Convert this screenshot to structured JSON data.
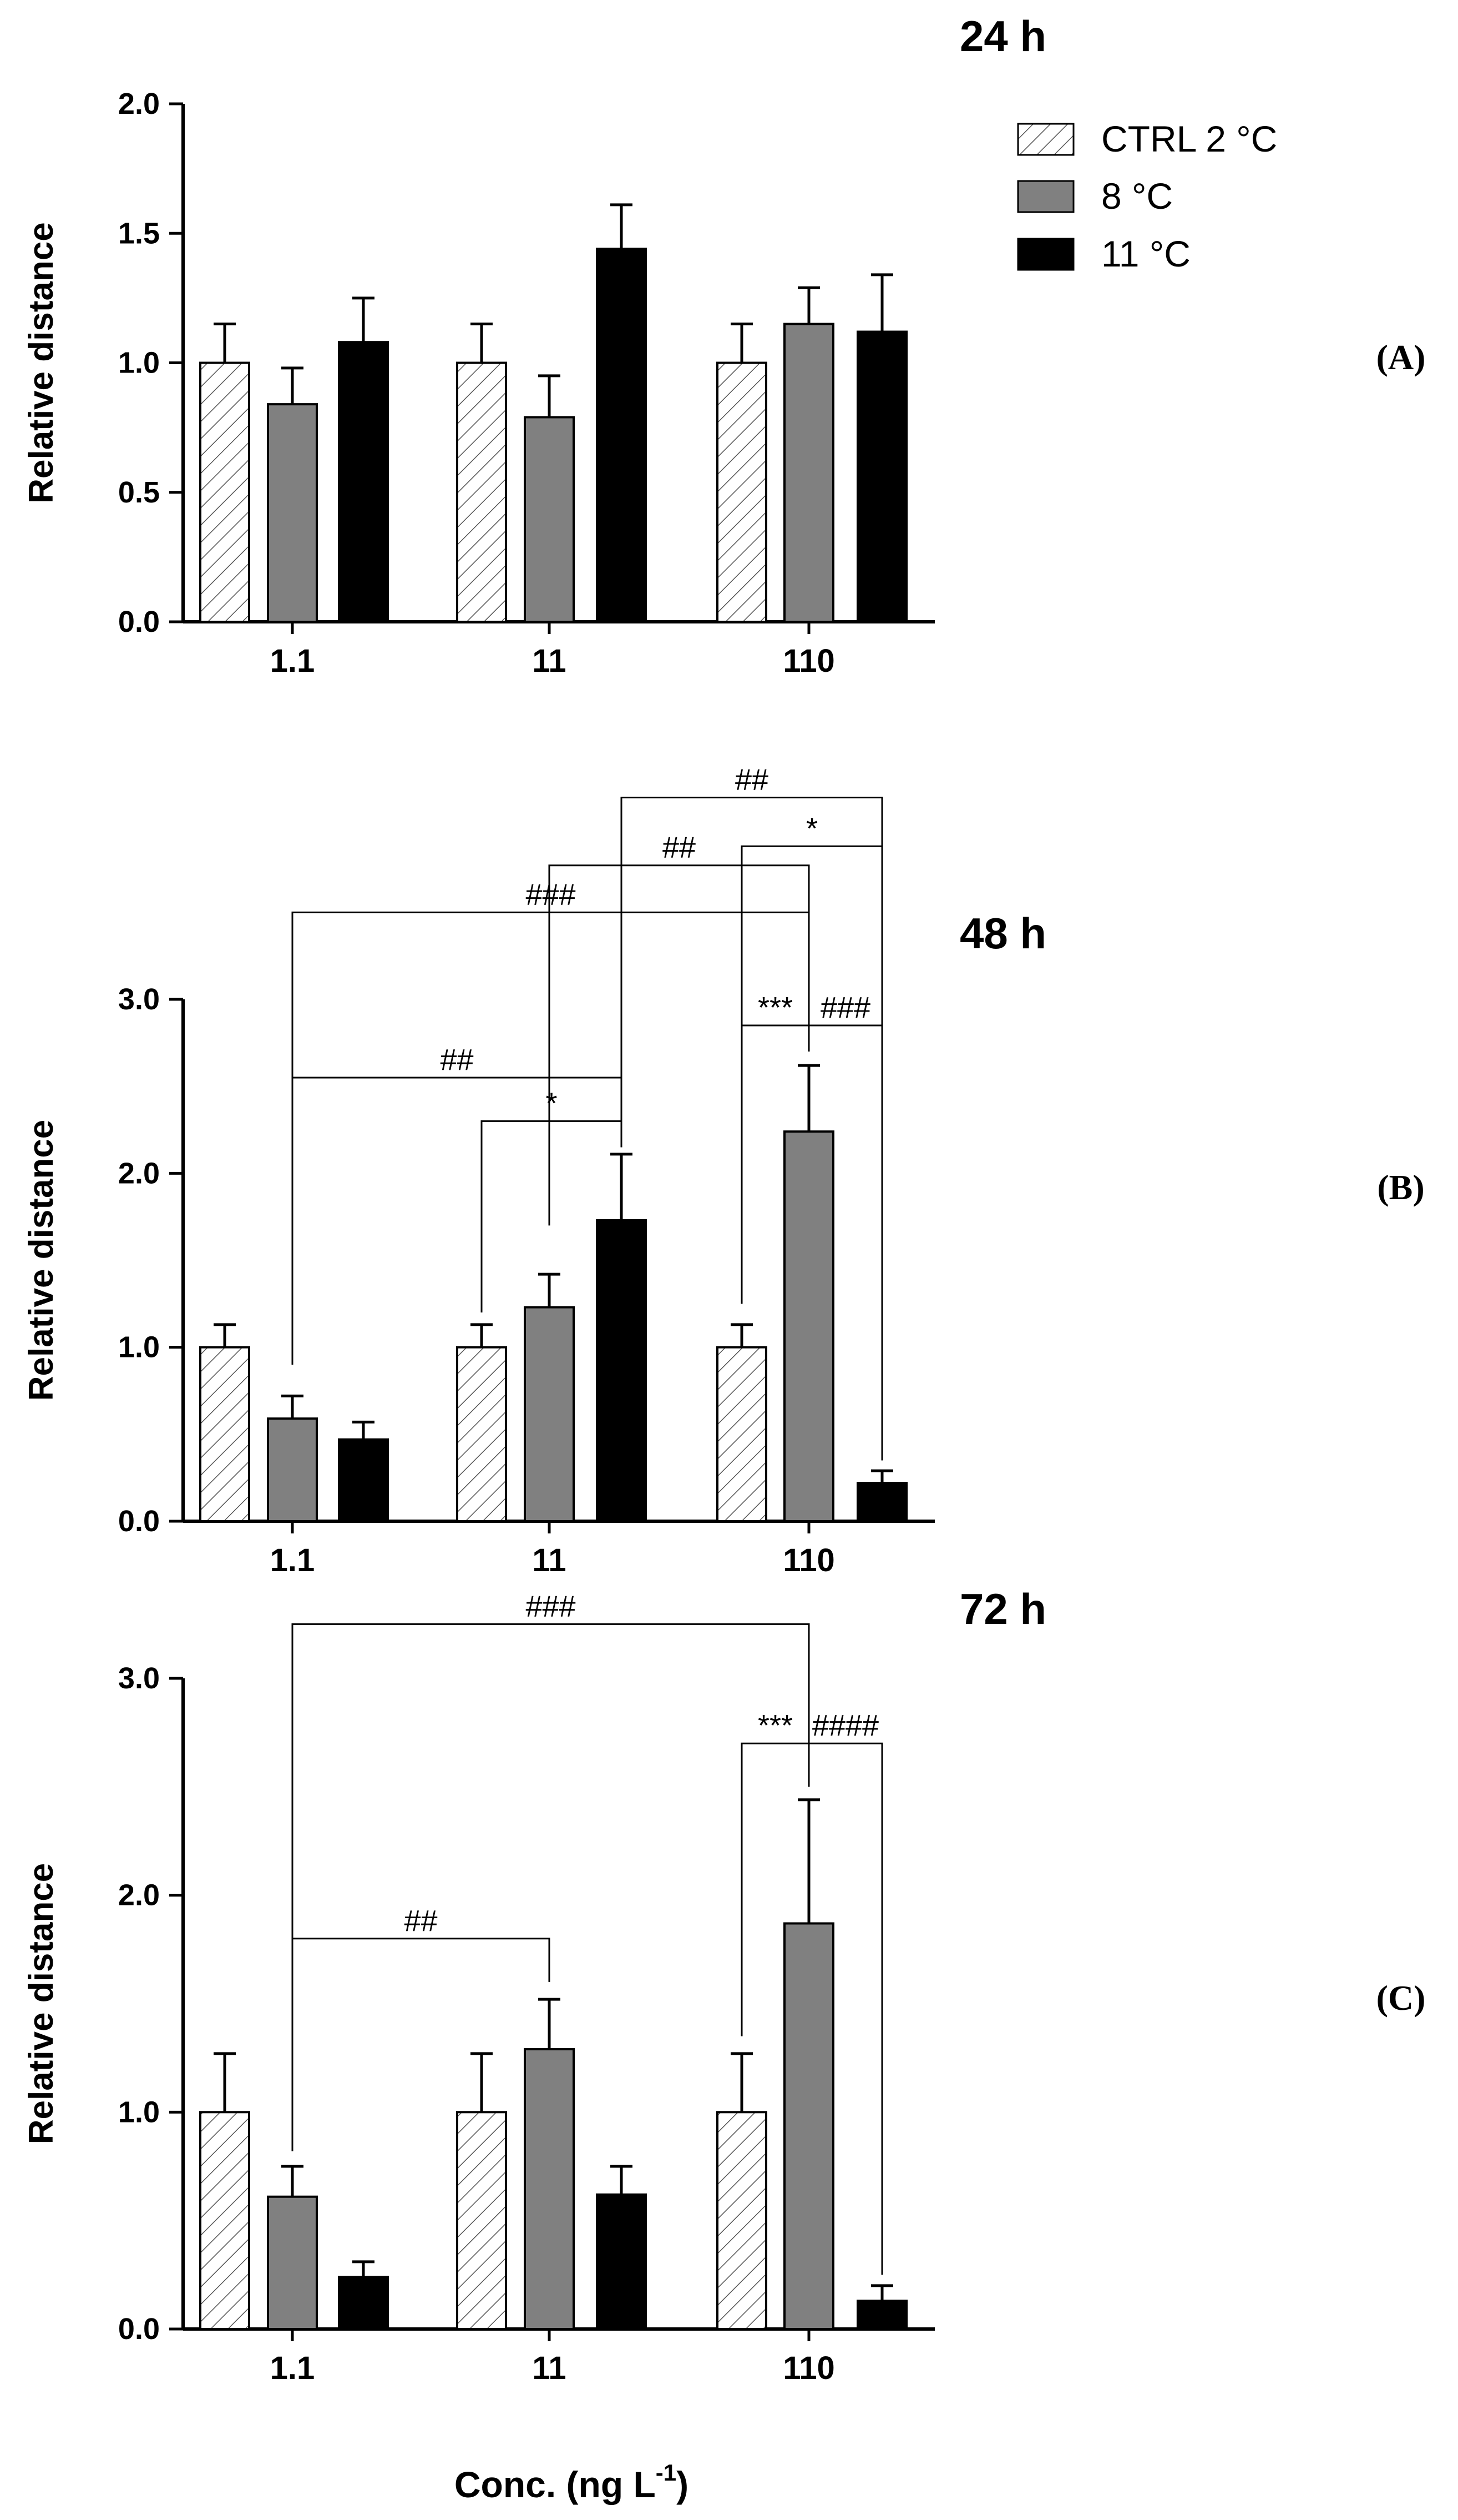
{
  "colors": {
    "ctrl": "#ffffff",
    "c8": "#808080",
    "c11": "#000000",
    "ink": "#000000"
  },
  "legend": {
    "items": [
      {
        "label": "CTRL 2 °C",
        "key": "ctrl"
      },
      {
        "label": "8 °C",
        "key": "c8"
      },
      {
        "label": "11 °C",
        "key": "c11"
      }
    ]
  },
  "xaxis": {
    "title": "Conc. (ng L",
    "title_sup": "-1",
    "title_close": ")"
  },
  "chart_data": [
    {
      "type": "bar",
      "title": "24 h",
      "panel_label": "(A)",
      "ylabel": "Relative distance",
      "categories": [
        "1.1",
        "11",
        "110"
      ],
      "ylim": [
        0,
        2.0
      ],
      "yticks": [
        "0.0",
        "0.5",
        "1.0",
        "1.5",
        "2.0"
      ],
      "series": [
        {
          "name": "CTRL 2 °C",
          "values": [
            1.0,
            1.0,
            1.0
          ],
          "errors": [
            0.15,
            0.15,
            0.15
          ]
        },
        {
          "name": "8 °C",
          "values": [
            0.84,
            0.79,
            1.15
          ],
          "errors": [
            0.14,
            0.16,
            0.14
          ]
        },
        {
          "name": "11 °C",
          "values": [
            1.08,
            1.44,
            1.12
          ],
          "errors": [
            0.17,
            0.17,
            0.22
          ]
        }
      ],
      "annotations": []
    },
    {
      "type": "bar",
      "title": "48 h",
      "panel_label": "(B)",
      "ylabel": "Relative distance",
      "categories": [
        "1.1",
        "11",
        "110"
      ],
      "ylim": [
        0,
        3.0
      ],
      "yticks": [
        "0.0",
        "1.0",
        "2.0",
        "3.0"
      ],
      "series": [
        {
          "name": "CTRL 2 °C",
          "values": [
            1.0,
            1.0,
            1.0
          ],
          "errors": [
            0.13,
            0.13,
            0.13
          ]
        },
        {
          "name": "8 °C",
          "values": [
            0.59,
            1.23,
            2.24
          ],
          "errors": [
            0.13,
            0.19,
            0.38
          ]
        },
        {
          "name": "11 °C",
          "values": [
            0.47,
            1.73,
            0.22
          ],
          "errors": [
            0.1,
            0.38,
            0.07
          ]
        }
      ],
      "annotations": [
        {
          "from": [
            0,
            1
          ],
          "to": [
            1,
            2
          ],
          "label": "##",
          "from_y": 0.9,
          "to_y": 2.15,
          "top_y": 2.55
        },
        {
          "from": [
            1,
            0
          ],
          "to": [
            1,
            2
          ],
          "label": "*",
          "from_y": 1.2,
          "to_y": 2.15,
          "top_y": 2.3
        },
        {
          "from": [
            0,
            1
          ],
          "to": [
            2,
            1
          ],
          "label": "###",
          "from_y": 0.98,
          "to_y": 2.7,
          "top_y": 3.5
        },
        {
          "from": [
            1,
            1
          ],
          "to": [
            2,
            1
          ],
          "label": "##",
          "from_y": 1.7,
          "to_y": 2.7,
          "top_y": 3.77
        },
        {
          "from": [
            1,
            2
          ],
          "to": [
            2,
            2
          ],
          "label": "##",
          "from_y": 2.15,
          "to_y": 0.35,
          "top_y": 4.16
        },
        {
          "from": [
            2,
            0
          ],
          "to": [
            2,
            2
          ],
          "label": "*",
          "from_y": 1.25,
          "to_y": 0.35,
          "top_y": 3.88
        },
        {
          "from": [
            2,
            0
          ],
          "to": [
            2,
            1
          ],
          "label": "***",
          "from_y": 1.25,
          "to_y": 2.7,
          "top_y": 2.85
        },
        {
          "from": [
            2,
            1
          ],
          "to": [
            2,
            2
          ],
          "label": "###",
          "from_y": 2.7,
          "to_y": 0.35,
          "top_y": 2.85
        }
      ]
    },
    {
      "type": "bar",
      "title": "72 h",
      "panel_label": "(C)",
      "ylabel": "Relative distance",
      "categories": [
        "1.1",
        "11",
        "110"
      ],
      "ylim": [
        0,
        3.0
      ],
      "yticks": [
        "0.0",
        "1.0",
        "2.0",
        "3.0"
      ],
      "series": [
        {
          "name": "CTRL 2 °C",
          "values": [
            1.0,
            1.0,
            1.0
          ],
          "errors": [
            0.27,
            0.27,
            0.27
          ]
        },
        {
          "name": "8 °C",
          "values": [
            0.61,
            1.29,
            1.87
          ],
          "errors": [
            0.14,
            0.23,
            0.57
          ]
        },
        {
          "name": "11 °C",
          "values": [
            0.24,
            0.62,
            0.13
          ],
          "errors": [
            0.07,
            0.13,
            0.07
          ]
        }
      ],
      "annotations": [
        {
          "from": [
            0,
            1
          ],
          "to": [
            1,
            1
          ],
          "label": "##",
          "from_y": 0.82,
          "to_y": 1.6,
          "top_y": 1.8
        },
        {
          "from": [
            0,
            1
          ],
          "to": [
            2,
            1
          ],
          "label": "###",
          "from_y": 0.82,
          "to_y": 2.5,
          "top_y": 3.25
        },
        {
          "from": [
            2,
            0
          ],
          "to": [
            2,
            1
          ],
          "label": "***",
          "from_y": 1.35,
          "to_y": 2.5,
          "top_y": 2.7
        },
        {
          "from": [
            2,
            1
          ],
          "to": [
            2,
            2
          ],
          "label": "####",
          "from_y": 2.5,
          "to_y": 0.25,
          "top_y": 2.7
        }
      ]
    }
  ]
}
